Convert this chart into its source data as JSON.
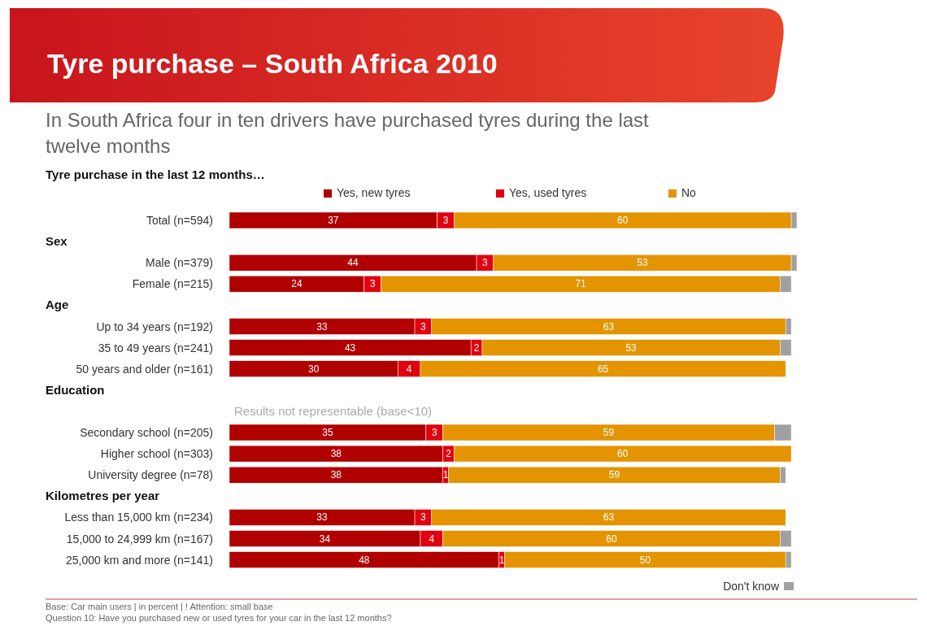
{
  "chart_data": {
    "type": "bar",
    "orientation": "horizontal",
    "stacked": true,
    "title": "Tyre purchase – South Africa 2010",
    "subtitle": "In South Africa four in ten drivers have purchased tyres during the last twelve months",
    "ylabel": "Tyre purchase in the last 12 months…",
    "categories": [
      "Total (n=594)",
      null,
      "Male (n=379)",
      "Female (n=215)",
      null,
      "Up to 34 years (n=192)",
      "35 to 49 years (n=241)",
      "50 years and older (n=161)",
      null,
      null,
      "Secondary school (n=205)",
      "Higher school (n=303)",
      "University degree (n=78)",
      null,
      "Less than 15,000 km (n=234)",
      "15,000 to 24,999 km (n=167)",
      "25,000 km and more (n=141)"
    ],
    "series": [
      {
        "name": "Yes, new tyres",
        "color": "#b00000",
        "values": [
          37,
          null,
          44,
          24,
          null,
          33,
          43,
          30,
          null,
          null,
          35,
          38,
          38,
          null,
          33,
          34,
          48
        ],
        "value_labels": [
          "37",
          null,
          "44",
          "24",
          null,
          "33",
          "43",
          "30",
          null,
          null,
          "35",
          "38",
          "38",
          null,
          "33",
          "34",
          "48"
        ]
      },
      {
        "name": "Yes, used tyres",
        "color": "#e0000f",
        "values": [
          3,
          null,
          3,
          3,
          null,
          3,
          2,
          4,
          null,
          null,
          3,
          2,
          1,
          null,
          3,
          4,
          1
        ],
        "value_labels": [
          "3",
          null,
          "3",
          "3",
          null,
          "3",
          "2",
          "4",
          null,
          null,
          "3",
          "2",
          "1",
          null,
          "3",
          "4",
          "1"
        ]
      },
      {
        "name": "No",
        "color": "#e39400",
        "values": [
          60,
          null,
          53,
          71,
          null,
          63,
          53,
          65,
          null,
          null,
          59,
          60,
          59,
          null,
          63,
          60,
          50
        ],
        "value_labels": [
          "60",
          null,
          "53",
          "71",
          null,
          "63",
          "53",
          "65",
          null,
          null,
          "59",
          "60",
          "59",
          null,
          "63",
          "60",
          "50"
        ]
      },
      {
        "name": "Don't know",
        "color": "#a0a0a0",
        "values": [
          1,
          null,
          1,
          2,
          null,
          1,
          2,
          null,
          null,
          null,
          3,
          null,
          1,
          null,
          null,
          2,
          1
        ]
      }
    ],
    "legend": "top",
    "annotations": [
      "Sex",
      "Age",
      "Education",
      "Results not representable (base<10)",
      "Kilometres per year",
      "Base: Car main users | in percent | ! Attention: small base",
      "Question 10: Have you purchased new or used tyres for your car in the last 12 months?"
    ]
  }
}
